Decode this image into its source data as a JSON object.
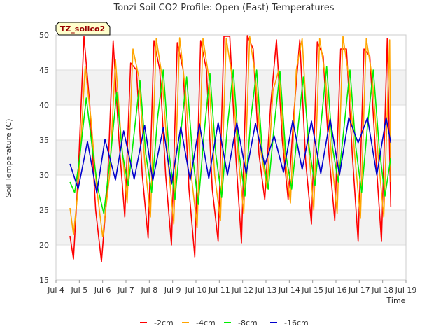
{
  "chart_data": {
    "type": "line",
    "title": "Tonzi Soil CO2 Profile: Open (East) Temperatures",
    "xlabel": "Time",
    "ylabel": "Soil Temperature (C)",
    "badge": "TZ_soilco2",
    "xlim": [
      4,
      19
    ],
    "ylim": [
      15,
      50
    ],
    "x_ticks": [
      4,
      5,
      6,
      7,
      8,
      9,
      10,
      11,
      12,
      13,
      14,
      15,
      16,
      17,
      18,
      19
    ],
    "x_tick_labels": [
      "Jul 4",
      "Jul 5",
      "Jul 6",
      "Jul 7",
      "Jul 8",
      "Jul 9",
      "Jul 10",
      "Jul 11",
      "Jul 12",
      "Jul 13",
      "Jul 14",
      "Jul 15",
      "Jul 16",
      "Jul 17",
      "Jul 18",
      "Jul 19"
    ],
    "y_ticks": [
      15,
      20,
      25,
      30,
      35,
      40,
      45,
      50
    ],
    "grid": "horizontal bands",
    "legend_position": "bottom",
    "series": [
      {
        "name": "-2cm",
        "color": "#ff0000",
        "x": [
          4.6,
          4.75,
          4.95,
          5.2,
          5.45,
          5.7,
          5.95,
          6.2,
          6.45,
          6.7,
          6.95,
          7.2,
          7.45,
          7.7,
          7.95,
          8.2,
          8.45,
          8.7,
          8.95,
          9.2,
          9.45,
          9.7,
          9.95,
          10.2,
          10.45,
          10.7,
          10.95,
          11.2,
          11.45,
          11.7,
          11.95,
          12.2,
          12.45,
          12.7,
          12.95,
          13.2,
          13.45,
          13.7,
          13.95,
          14.2,
          14.45,
          14.7,
          14.95,
          15.2,
          15.45,
          15.7,
          15.95,
          16.2,
          16.45,
          16.7,
          16.95,
          17.2,
          17.45,
          17.7,
          17.95,
          18.2,
          18.35
        ],
        "y": [
          21.3,
          18.0,
          30.0,
          49.8,
          40.0,
          25.0,
          17.6,
          28.0,
          49.2,
          35.0,
          24.0,
          46.0,
          45.0,
          30.0,
          21.0,
          49.2,
          45.0,
          30.0,
          20.0,
          48.9,
          45.0,
          28.0,
          18.3,
          49.2,
          45.0,
          28.0,
          20.5,
          49.8,
          49.8,
          33.0,
          20.3,
          49.9,
          48.0,
          33.0,
          26.5,
          40.0,
          49.3,
          35.0,
          26.5,
          39.0,
          49.3,
          32.0,
          23.0,
          49.0,
          47.0,
          33.0,
          23.5,
          48.0,
          48.0,
          33.0,
          20.5,
          48.0,
          47.0,
          33.0,
          20.5,
          49.5,
          25.5
        ]
      },
      {
        "name": "-4cm",
        "color": "#ffa500",
        "x": [
          4.6,
          4.75,
          4.95,
          5.25,
          5.5,
          5.75,
          6.0,
          6.3,
          6.55,
          6.8,
          7.05,
          7.3,
          7.55,
          7.8,
          8.05,
          8.3,
          8.55,
          8.8,
          9.05,
          9.3,
          9.55,
          9.8,
          10.05,
          10.3,
          10.55,
          10.8,
          11.05,
          11.3,
          11.55,
          11.8,
          12.05,
          12.3,
          12.55,
          12.8,
          13.05,
          13.3,
          13.55,
          13.8,
          14.05,
          14.3,
          14.55,
          14.8,
          15.05,
          15.3,
          15.55,
          15.8,
          16.05,
          16.3,
          16.55,
          16.8,
          17.05,
          17.3,
          17.55,
          17.8,
          18.05,
          18.3,
          18.35
        ],
        "y": [
          25.3,
          21.5,
          28.0,
          45.5,
          38.0,
          28.0,
          21.2,
          30.0,
          46.5,
          35.0,
          26.0,
          48.0,
          44.0,
          32.0,
          24.0,
          49.5,
          44.0,
          32.0,
          23.0,
          49.6,
          42.0,
          30.0,
          22.5,
          49.5,
          44.0,
          30.0,
          23.5,
          49.5,
          44.0,
          33.0,
          24.5,
          49.8,
          44.0,
          33.0,
          28.0,
          42.0,
          45.0,
          33.0,
          26.0,
          45.0,
          49.5,
          35.0,
          25.0,
          49.5,
          44.0,
          33.0,
          24.5,
          49.8,
          44.0,
          33.0,
          23.8,
          49.5,
          44.0,
          33.0,
          24.0,
          49.3,
          29.0
        ]
      },
      {
        "name": "-8cm",
        "color": "#00ee00",
        "x": [
          4.6,
          4.8,
          5.0,
          5.3,
          5.55,
          5.8,
          6.05,
          6.35,
          6.6,
          6.85,
          7.1,
          7.35,
          7.6,
          7.85,
          8.1,
          8.35,
          8.6,
          8.85,
          9.1,
          9.35,
          9.6,
          9.85,
          10.1,
          10.35,
          10.6,
          10.85,
          11.1,
          11.35,
          11.6,
          11.85,
          12.1,
          12.35,
          12.6,
          12.85,
          13.1,
          13.35,
          13.6,
          13.85,
          14.1,
          14.35,
          14.6,
          14.85,
          15.1,
          15.35,
          15.6,
          15.85,
          16.1,
          16.35,
          16.6,
          16.85,
          17.1,
          17.35,
          17.6,
          17.85,
          18.1,
          18.35
        ],
        "y": [
          29.0,
          27.5,
          32.0,
          41.0,
          34.0,
          28.0,
          24.5,
          33.0,
          41.8,
          33.0,
          28.5,
          36.0,
          43.5,
          33.0,
          27.5,
          38.0,
          45.0,
          33.0,
          26.5,
          36.0,
          44.0,
          33.0,
          25.8,
          36.0,
          44.5,
          33.0,
          26.8,
          37.0,
          45.0,
          33.0,
          27.0,
          38.0,
          45.0,
          33.0,
          28.0,
          37.0,
          44.8,
          33.0,
          28.0,
          36.0,
          44.0,
          34.0,
          28.5,
          37.0,
          45.5,
          34.0,
          29.0,
          37.0,
          45.0,
          34.0,
          27.5,
          37.0,
          45.0,
          34.0,
          27.0,
          32.5
        ]
      },
      {
        "name": "-16cm",
        "color": "#0000cc",
        "x": [
          4.6,
          4.95,
          5.35,
          5.75,
          6.1,
          6.55,
          6.9,
          7.35,
          7.8,
          8.15,
          8.6,
          8.95,
          9.35,
          9.75,
          10.15,
          10.55,
          10.95,
          11.35,
          11.75,
          12.15,
          12.55,
          12.95,
          13.35,
          13.75,
          14.15,
          14.55,
          14.95,
          15.35,
          15.75,
          16.15,
          16.55,
          16.95,
          17.35,
          17.75,
          18.15,
          18.35
        ],
        "y": [
          31.6,
          28.0,
          34.8,
          27.4,
          35.1,
          29.3,
          36.3,
          29.4,
          37.1,
          29.2,
          36.8,
          28.7,
          36.9,
          29.3,
          37.3,
          29.5,
          37.5,
          30.0,
          37.5,
          30.2,
          37.4,
          31.4,
          35.6,
          30.4,
          37.8,
          30.8,
          37.7,
          30.2,
          38.0,
          30.0,
          38.2,
          34.6,
          38.2,
          30.0,
          38.2,
          34.6
        ]
      }
    ]
  }
}
